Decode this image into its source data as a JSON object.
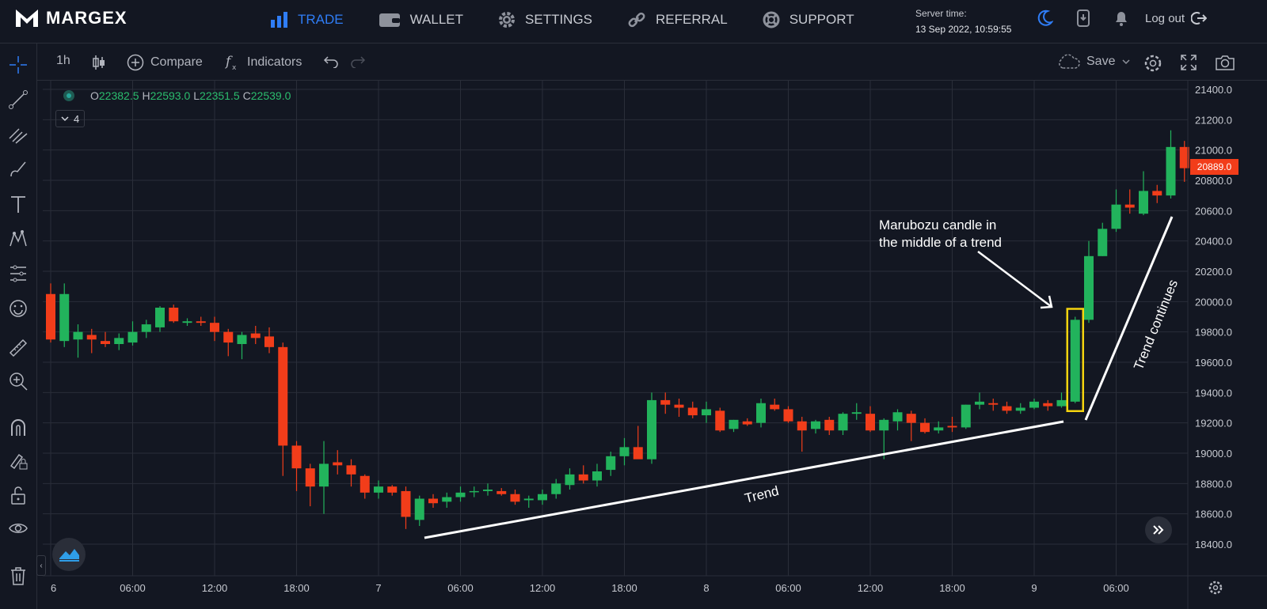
{
  "brand": "MARGEX",
  "nav": [
    {
      "label": "TRADE",
      "icon": "bar-chart-icon",
      "active": true
    },
    {
      "label": "WALLET",
      "icon": "wallet-icon",
      "active": false
    },
    {
      "label": "SETTINGS",
      "icon": "gear-icon",
      "active": false
    },
    {
      "label": "REFERRAL",
      "icon": "link-icon",
      "active": false
    },
    {
      "label": "SUPPORT",
      "icon": "lifebuoy-icon",
      "active": false
    }
  ],
  "server": {
    "label": "Server time:",
    "time": "13 Sep 2022, 10:59:55"
  },
  "logout_label": "Log out",
  "toolbar": {
    "interval": "1h",
    "compare": "Compare",
    "indicators": "Indicators",
    "save": "Save"
  },
  "legend": {
    "o_key": "O",
    "o": "22382.5",
    "h_key": "H",
    "h": "22593.0",
    "l_key": "L",
    "l": "22351.5",
    "c_key": "C",
    "c": "22539.0",
    "collapse_count": "4"
  },
  "last_price": "20889.0",
  "colors": {
    "up": "#22b35c",
    "down": "#f23d1a",
    "background": "#131722",
    "grid": "#2a2e39",
    "highlight": "#f5d40f",
    "annotation": "#ffffff"
  },
  "chart_data": {
    "type": "candlestick",
    "y_ticks": [
      "21400.0",
      "21200.0",
      "21000.0",
      "20800.0",
      "20600.0",
      "20400.0",
      "20200.0",
      "20000.0",
      "19800.0",
      "19600.0",
      "19400.0",
      "19200.0",
      "19000.0",
      "18800.0",
      "18600.0",
      "18400.0"
    ],
    "ylim": [
      18200,
      21500
    ],
    "x_ticks": [
      "6",
      "06:00",
      "12:00",
      "18:00",
      "7",
      "06:00",
      "12:00",
      "18:00",
      "8",
      "06:00",
      "12:00",
      "18:00",
      "9",
      "06:00"
    ],
    "annotations": [
      {
        "text_lines": [
          "Marubozu candle in",
          "the middle of a trend"
        ]
      },
      {
        "text": "Trend"
      },
      {
        "text": "Trend continues"
      }
    ],
    "candles": [
      [
        20050,
        20120,
        19730,
        19750
      ],
      [
        19740,
        20120,
        19700,
        20050
      ],
      [
        19750,
        19850,
        19630,
        19800
      ],
      [
        19780,
        19820,
        19660,
        19750
      ],
      [
        19740,
        19800,
        19700,
        19720
      ],
      [
        19720,
        19790,
        19680,
        19760
      ],
      [
        19730,
        19870,
        19710,
        19800
      ],
      [
        19800,
        19880,
        19760,
        19850
      ],
      [
        19830,
        19970,
        19800,
        19960
      ],
      [
        19960,
        19980,
        19860,
        19870
      ],
      [
        19860,
        19890,
        19840,
        19870
      ],
      [
        19870,
        19900,
        19840,
        19860
      ],
      [
        19860,
        19900,
        19740,
        19800
      ],
      [
        19800,
        19820,
        19640,
        19730
      ],
      [
        19720,
        19800,
        19620,
        19780
      ],
      [
        19790,
        19840,
        19720,
        19760
      ],
      [
        19770,
        19830,
        19660,
        19700
      ],
      [
        19700,
        19730,
        18850,
        19050
      ],
      [
        19050,
        19080,
        18750,
        18900
      ],
      [
        18900,
        18930,
        18650,
        18780
      ],
      [
        18780,
        19080,
        18600,
        18930
      ],
      [
        18940,
        19020,
        18860,
        18920
      ],
      [
        18920,
        18960,
        18780,
        18860
      ],
      [
        18850,
        18860,
        18700,
        18740
      ],
      [
        18740,
        18820,
        18700,
        18780
      ],
      [
        18780,
        18790,
        18720,
        18740
      ],
      [
        18750,
        18780,
        18500,
        18580
      ],
      [
        18560,
        18720,
        18520,
        18700
      ],
      [
        18700,
        18730,
        18640,
        18670
      ],
      [
        18680,
        18740,
        18640,
        18710
      ],
      [
        18710,
        18780,
        18680,
        18740
      ],
      [
        18750,
        18780,
        18710,
        18750
      ],
      [
        18750,
        18800,
        18720,
        18760
      ],
      [
        18750,
        18770,
        18720,
        18730
      ],
      [
        18730,
        18760,
        18660,
        18680
      ],
      [
        18690,
        18720,
        18640,
        18700
      ],
      [
        18690,
        18760,
        18660,
        18730
      ],
      [
        18730,
        18830,
        18700,
        18800
      ],
      [
        18790,
        18900,
        18760,
        18860
      ],
      [
        18860,
        18920,
        18800,
        18820
      ],
      [
        18820,
        18930,
        18780,
        18880
      ],
      [
        18890,
        19010,
        18850,
        18980
      ],
      [
        18980,
        19100,
        18920,
        19040
      ],
      [
        19040,
        19180,
        18980,
        18960
      ],
      [
        18960,
        19400,
        18930,
        19350
      ],
      [
        19350,
        19400,
        19260,
        19320
      ],
      [
        19320,
        19360,
        19240,
        19300
      ],
      [
        19300,
        19340,
        19230,
        19250
      ],
      [
        19250,
        19340,
        19200,
        19290
      ],
      [
        19280,
        19300,
        19140,
        19150
      ],
      [
        19160,
        19220,
        19140,
        19220
      ],
      [
        19210,
        19230,
        19180,
        19190
      ],
      [
        19200,
        19360,
        19170,
        19330
      ],
      [
        19320,
        19360,
        19280,
        19290
      ],
      [
        19290,
        19310,
        19200,
        19210
      ],
      [
        19210,
        19240,
        19010,
        19150
      ],
      [
        19160,
        19220,
        19130,
        19210
      ],
      [
        19220,
        19240,
        19120,
        19150
      ],
      [
        19150,
        19270,
        19120,
        19260
      ],
      [
        19260,
        19330,
        19220,
        19270
      ],
      [
        19260,
        19310,
        19140,
        19150
      ],
      [
        19150,
        19230,
        18960,
        19220
      ],
      [
        19210,
        19290,
        19150,
        19270
      ],
      [
        19260,
        19280,
        19080,
        19200
      ],
      [
        19200,
        19230,
        19130,
        19140
      ],
      [
        19150,
        19210,
        19130,
        19170
      ],
      [
        19180,
        19240,
        19140,
        19170
      ],
      [
        19170,
        19320,
        19160,
        19320
      ],
      [
        19320,
        19400,
        19290,
        19340
      ],
      [
        19330,
        19360,
        19280,
        19320
      ],
      [
        19310,
        19340,
        19260,
        19280
      ],
      [
        19280,
        19330,
        19260,
        19300
      ],
      [
        19300,
        19360,
        19290,
        19340
      ],
      [
        19330,
        19350,
        19280,
        19310
      ],
      [
        19310,
        19400,
        19300,
        19350
      ],
      [
        19340,
        19900,
        19330,
        19880
      ],
      [
        19880,
        20400,
        19860,
        20300
      ],
      [
        20300,
        20520,
        20300,
        20480
      ],
      [
        20480,
        20740,
        20460,
        20640
      ],
      [
        20640,
        20740,
        20580,
        20620
      ],
      [
        20580,
        20860,
        20570,
        20730
      ],
      [
        20730,
        20770,
        20650,
        20700
      ],
      [
        20700,
        21130,
        20680,
        21020
      ],
      [
        21020,
        21060,
        20790,
        20880
      ]
    ]
  }
}
